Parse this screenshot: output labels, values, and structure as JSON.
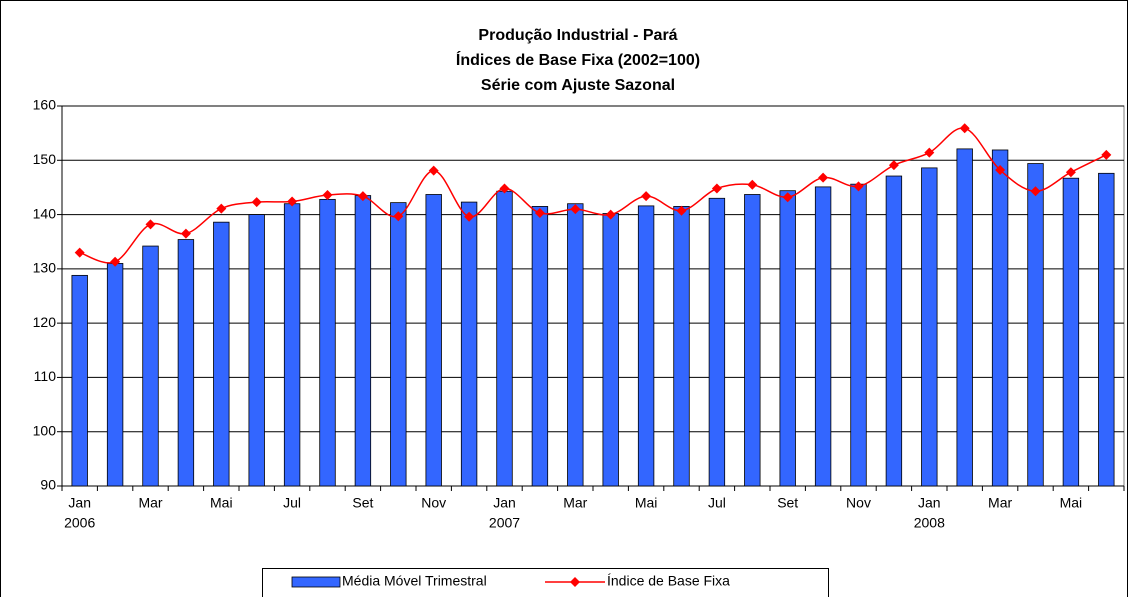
{
  "chart_data": {
    "type": "bar_line",
    "title": [
      "Produção Industrial - Pará",
      "Índices de Base Fixa (2002=100)",
      "Série com Ajuste Sazonal"
    ],
    "categories": [
      "Jan",
      null,
      "Mar",
      null,
      "Mai",
      null,
      "Jul",
      null,
      "Set",
      null,
      "Nov",
      null,
      "Jan",
      null,
      "Mar",
      null,
      "Mai",
      null,
      "Jul",
      null,
      "Set",
      null,
      "Nov",
      null,
      "Jan",
      null,
      "Mar",
      null,
      "Mai",
      null
    ],
    "category_years": [
      "2006",
      null,
      null,
      null,
      null,
      null,
      null,
      null,
      null,
      null,
      null,
      null,
      "2007",
      null,
      null,
      null,
      null,
      null,
      null,
      null,
      null,
      null,
      null,
      null,
      "2008",
      null,
      null,
      null,
      null,
      null
    ],
    "series": [
      {
        "name": "Média Móvel Trimestral",
        "type": "bar",
        "color": "#3366ff",
        "values": [
          128.8,
          131,
          134.2,
          135.4,
          138.6,
          140,
          142,
          142.8,
          143.5,
          142.2,
          143.7,
          142.3,
          144.3,
          141.5,
          142,
          140.2,
          141.6,
          141.5,
          143,
          143.7,
          144.4,
          145.1,
          145.6,
          147.1,
          148.6,
          152.1,
          151.9,
          149.4,
          146.7,
          147.6
        ]
      },
      {
        "name": "Índice de Base Fixa",
        "type": "line",
        "color": "#ff0000",
        "values": [
          133,
          131.3,
          138.2,
          136.5,
          141.1,
          142.3,
          142.4,
          143.6,
          143.4,
          139.7,
          148.1,
          139.6,
          144.8,
          140.3,
          141,
          140,
          143.4,
          140.7,
          144.8,
          145.5,
          143.2,
          146.8,
          145.2,
          149.1,
          151.4,
          155.9,
          148.2,
          144.3,
          147.8,
          151
        ]
      }
    ],
    "ylim": [
      90,
      160
    ],
    "yticks": [
      90,
      100,
      110,
      120,
      130,
      140,
      150,
      160
    ],
    "grid": true,
    "legend": "bottom"
  }
}
